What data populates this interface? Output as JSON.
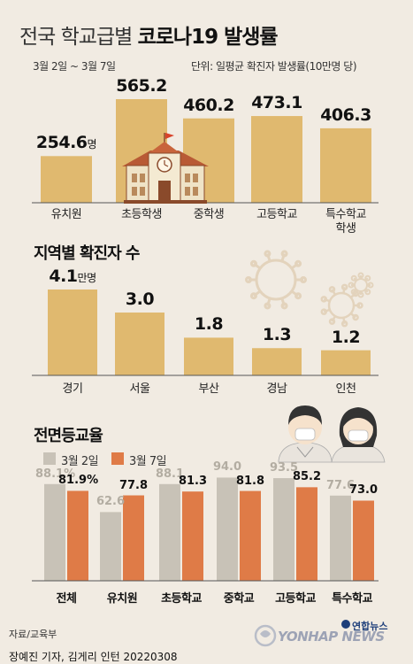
{
  "title_light": "전국 학교급별",
  "title_bold": "코로나19 발생률",
  "period": "3월 2일 ~ 3월 7일",
  "unit_note": "단위: 일평균 확진자 발생률(10만명 당)",
  "section2_title": "지역별 확진자 수",
  "section3_title": "전면등교율",
  "source": "자료/교육부",
  "byline": "장예진 기자, 김게리 인턴  20220308",
  "brand_korean": "연합뉴스",
  "brand_english": "YONHAP NEWS",
  "colors": {
    "bar": "#e0b96f",
    "gray": "#c8c2b7",
    "orange": "#df7b47",
    "bg": "#f1ebe2"
  },
  "icons": [
    "school-building-icon",
    "virus-icon",
    "student-boy-mask-icon",
    "student-girl-mask-icon",
    "yonhap-logo-icon"
  ],
  "chart_data": [
    {
      "type": "bar",
      "title": "전국 학교급별 코로나19 발생률",
      "categories": [
        "유치원",
        "초등학생",
        "중학생",
        "고등학교",
        "특수학교\n학생"
      ],
      "values": [
        254.6,
        565.2,
        460.2,
        473.1,
        406.3
      ],
      "value_labels": [
        "254.6",
        "565.2",
        "460.2",
        "473.1",
        "406.3"
      ],
      "first_unit": "명",
      "ylabel": "",
      "xlabel": ""
    },
    {
      "type": "bar",
      "title": "지역별 확진자 수",
      "categories": [
        "경기",
        "서울",
        "부산",
        "경남",
        "인천"
      ],
      "values": [
        4.1,
        3.0,
        1.8,
        1.3,
        1.2
      ],
      "value_labels": [
        "4.1",
        "3.0",
        "1.8",
        "1.3",
        "1.2"
      ],
      "first_unit": "만명"
    },
    {
      "type": "bar",
      "title": "전면등교율",
      "categories": [
        "전체",
        "유치원",
        "초등학교",
        "중학교",
        "고등학교",
        "특수학교"
      ],
      "series": [
        {
          "name": "3월 2일",
          "values": [
            88.1,
            62.6,
            88.1,
            94.0,
            93.5,
            77.6
          ],
          "value_labels": [
            "88.1%",
            "62.6",
            "88.1",
            "94.0",
            "93.5",
            "77.6"
          ]
        },
        {
          "name": "3월 7일",
          "values": [
            81.9,
            77.8,
            81.3,
            81.8,
            85.2,
            73.0
          ],
          "value_labels": [
            "81.9%",
            "77.8",
            "81.3",
            "81.8",
            "85.2",
            "73.0"
          ]
        }
      ],
      "legend": "top-left"
    }
  ]
}
